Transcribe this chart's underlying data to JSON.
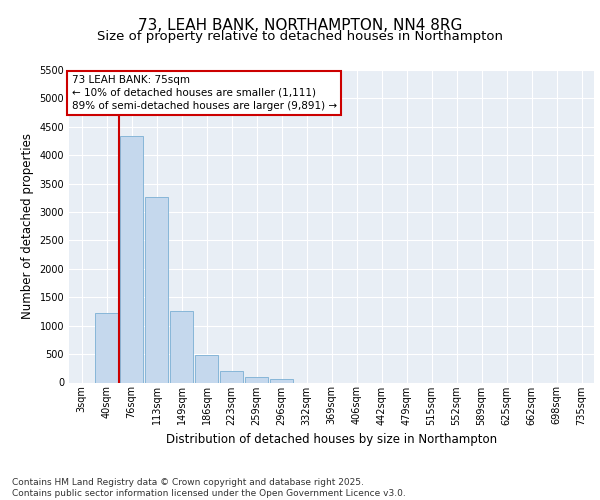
{
  "title": "73, LEAH BANK, NORTHAMPTON, NN4 8RG",
  "subtitle": "Size of property relative to detached houses in Northampton",
  "xlabel": "Distribution of detached houses by size in Northampton",
  "ylabel": "Number of detached properties",
  "categories": [
    "3sqm",
    "40sqm",
    "76sqm",
    "113sqm",
    "149sqm",
    "186sqm",
    "223sqm",
    "259sqm",
    "296sqm",
    "332sqm",
    "369sqm",
    "406sqm",
    "442sqm",
    "479sqm",
    "515sqm",
    "552sqm",
    "589sqm",
    "625sqm",
    "662sqm",
    "698sqm",
    "735sqm"
  ],
  "values": [
    0,
    1220,
    4330,
    3270,
    1250,
    490,
    200,
    100,
    60,
    0,
    0,
    0,
    0,
    0,
    0,
    0,
    0,
    0,
    0,
    0,
    0
  ],
  "bar_color": "#c5d8ed",
  "bar_edge_color": "#7aafd4",
  "vline_color": "#cc0000",
  "vline_pos": 1.5,
  "annotation_text": "73 LEAH BANK: 75sqm\n← 10% of detached houses are smaller (1,111)\n89% of semi-detached houses are larger (9,891) →",
  "annotation_box_color": "#cc0000",
  "ylim": [
    0,
    5500
  ],
  "yticks": [
    0,
    500,
    1000,
    1500,
    2000,
    2500,
    3000,
    3500,
    4000,
    4500,
    5000,
    5500
  ],
  "background_color": "#e8eef5",
  "grid_color": "#ffffff",
  "footer": "Contains HM Land Registry data © Crown copyright and database right 2025.\nContains public sector information licensed under the Open Government Licence v3.0.",
  "title_fontsize": 11,
  "subtitle_fontsize": 9.5,
  "axis_label_fontsize": 8.5,
  "tick_fontsize": 7,
  "annotation_fontsize": 7.5,
  "footer_fontsize": 6.5
}
